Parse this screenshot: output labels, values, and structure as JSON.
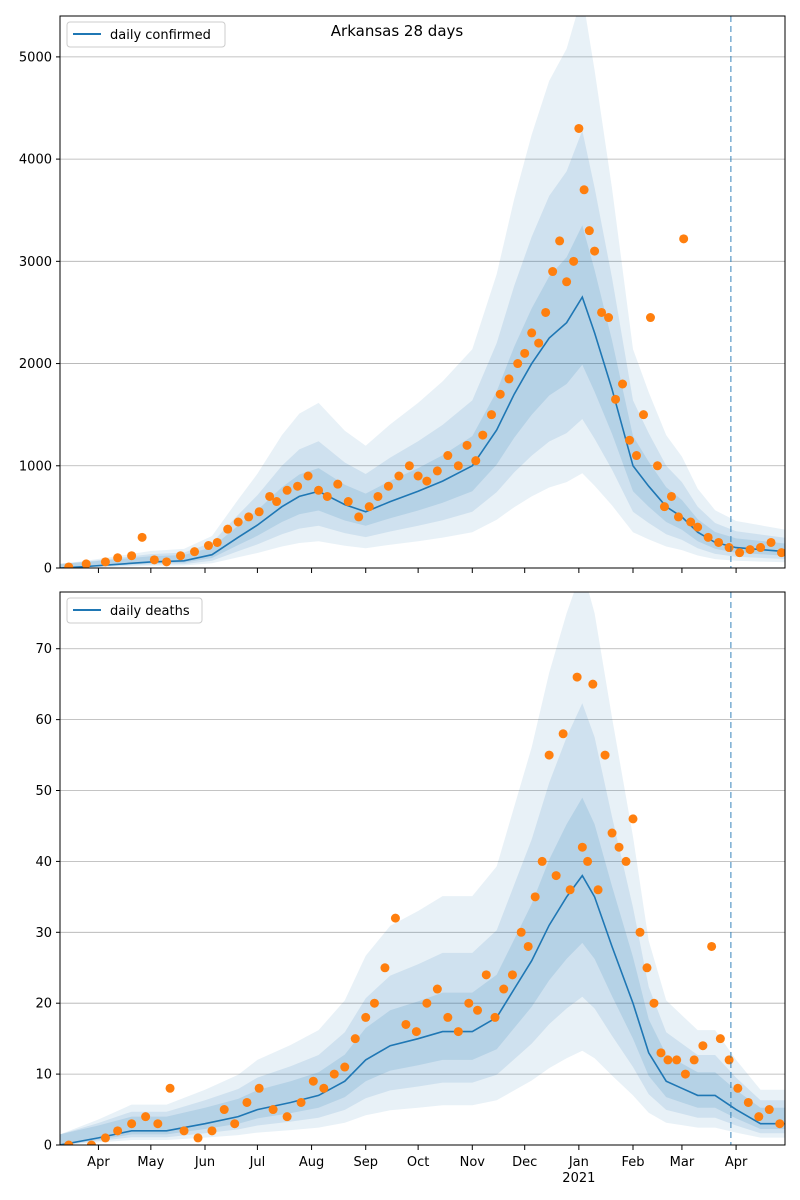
{
  "chart_data": [
    {
      "type": "line",
      "title": "Arkansas 28 days",
      "legend": "top-left",
      "grid": "y",
      "ylim": [
        0,
        5400
      ],
      "yticks": [
        0,
        1000,
        2000,
        3000,
        4000,
        5000
      ],
      "xlim": [
        "2020-03-10",
        "2021-04-29"
      ],
      "vline_date": "2021-03-29",
      "series": [
        {
          "name": "daily confirmed",
          "style": "line",
          "color": "#1f77b4",
          "x": [
            "2020-03-10",
            "2020-03-25",
            "2020-04-15",
            "2020-05-01",
            "2020-05-20",
            "2020-06-05",
            "2020-06-20",
            "2020-07-01",
            "2020-07-15",
            "2020-07-25",
            "2020-08-05",
            "2020-08-20",
            "2020-09-01",
            "2020-09-15",
            "2020-10-01",
            "2020-10-15",
            "2020-11-01",
            "2020-11-15",
            "2020-11-25",
            "2020-12-05",
            "2020-12-15",
            "2020-12-25",
            "2021-01-03",
            "2021-01-10",
            "2021-01-20",
            "2021-02-01",
            "2021-02-10",
            "2021-02-20",
            "2021-03-01",
            "2021-03-10",
            "2021-03-20",
            "2021-04-01",
            "2021-04-15",
            "2021-04-29"
          ],
          "y": [
            0,
            15,
            40,
            60,
            70,
            130,
            300,
            420,
            600,
            700,
            750,
            620,
            550,
            650,
            750,
            850,
            1000,
            1350,
            1700,
            2000,
            2250,
            2400,
            2650,
            2300,
            1750,
            1000,
            800,
            600,
            500,
            350,
            250,
            200,
            180,
            160
          ]
        },
        {
          "name": "observed",
          "style": "points",
          "color": "#ff7f0e",
          "x": [
            "2020-03-15",
            "2020-03-25",
            "2020-04-05",
            "2020-04-12",
            "2020-04-20",
            "2020-04-26",
            "2020-05-03",
            "2020-05-10",
            "2020-05-18",
            "2020-05-26",
            "2020-06-03",
            "2020-06-08",
            "2020-06-14",
            "2020-06-20",
            "2020-06-26",
            "2020-07-02",
            "2020-07-08",
            "2020-07-12",
            "2020-07-18",
            "2020-07-24",
            "2020-07-30",
            "2020-08-05",
            "2020-08-10",
            "2020-08-16",
            "2020-08-22",
            "2020-08-28",
            "2020-09-03",
            "2020-09-08",
            "2020-09-14",
            "2020-09-20",
            "2020-09-26",
            "2020-10-01",
            "2020-10-06",
            "2020-10-12",
            "2020-10-18",
            "2020-10-24",
            "2020-10-29",
            "2020-11-03",
            "2020-11-07",
            "2020-11-12",
            "2020-11-17",
            "2020-11-22",
            "2020-11-27",
            "2020-12-01",
            "2020-12-05",
            "2020-12-09",
            "2020-12-13",
            "2020-12-17",
            "2020-12-21",
            "2020-12-25",
            "2020-12-29",
            "2021-01-01",
            "2021-01-04",
            "2021-01-07",
            "2021-01-10",
            "2021-01-14",
            "2021-01-18",
            "2021-01-22",
            "2021-01-26",
            "2021-01-30",
            "2021-02-03",
            "2021-02-07",
            "2021-02-11",
            "2021-02-15",
            "2021-02-19",
            "2021-02-23",
            "2021-02-27",
            "2021-03-02",
            "2021-03-06",
            "2021-03-10",
            "2021-03-16",
            "2021-03-22",
            "2021-03-28",
            "2021-04-03",
            "2021-04-09",
            "2021-04-15",
            "2021-04-21",
            "2021-04-27"
          ],
          "y": [
            10,
            40,
            60,
            100,
            120,
            300,
            80,
            60,
            120,
            160,
            220,
            250,
            380,
            450,
            500,
            550,
            700,
            650,
            760,
            800,
            900,
            760,
            700,
            820,
            650,
            500,
            600,
            700,
            800,
            900,
            1000,
            900,
            850,
            950,
            1100,
            1000,
            1200,
            1050,
            1300,
            1500,
            1700,
            1850,
            2000,
            2100,
            2300,
            2200,
            2500,
            2900,
            3200,
            2800,
            3000,
            4300,
            3700,
            3300,
            3100,
            2500,
            2450,
            1650,
            1800,
            1250,
            1100,
            1500,
            2450,
            1000,
            600,
            700,
            500,
            3220,
            450,
            400,
            300,
            250,
            200,
            150,
            180,
            200,
            250,
            150
          ]
        }
      ]
    },
    {
      "type": "line",
      "title": "",
      "legend": "top-left",
      "grid": "y",
      "ylim": [
        0,
        78
      ],
      "yticks": [
        0,
        10,
        20,
        30,
        40,
        50,
        60,
        70
      ],
      "xlim": [
        "2020-03-10",
        "2021-04-29"
      ],
      "xticks": [
        {
          "date": "2020-04-01",
          "label": "Apr"
        },
        {
          "date": "2020-05-01",
          "label": "May"
        },
        {
          "date": "2020-06-01",
          "label": "Jun"
        },
        {
          "date": "2020-07-01",
          "label": "Jul"
        },
        {
          "date": "2020-08-01",
          "label": "Aug"
        },
        {
          "date": "2020-09-01",
          "label": "Sep"
        },
        {
          "date": "2020-10-01",
          "label": "Oct"
        },
        {
          "date": "2020-11-01",
          "label": "Nov"
        },
        {
          "date": "2020-12-01",
          "label": "Dec"
        },
        {
          "date": "2021-01-01",
          "label": "Jan"
        },
        {
          "date": "2021-02-01",
          "label": "Feb"
        },
        {
          "date": "2021-03-01",
          "label": "Mar"
        },
        {
          "date": "2021-04-01",
          "label": "Apr"
        }
      ],
      "year_label": {
        "date": "2021-01-01",
        "label": "2021"
      },
      "vline_date": "2021-03-29",
      "series": [
        {
          "name": "daily deaths",
          "style": "line",
          "color": "#1f77b4",
          "x": [
            "2020-03-10",
            "2020-04-01",
            "2020-04-20",
            "2020-05-10",
            "2020-06-01",
            "2020-06-20",
            "2020-07-01",
            "2020-07-20",
            "2020-08-05",
            "2020-08-20",
            "2020-09-01",
            "2020-09-15",
            "2020-10-01",
            "2020-10-15",
            "2020-11-01",
            "2020-11-15",
            "2020-11-25",
            "2020-12-05",
            "2020-12-15",
            "2020-12-25",
            "2021-01-03",
            "2021-01-10",
            "2021-01-20",
            "2021-02-01",
            "2021-02-10",
            "2021-02-20",
            "2021-03-01",
            "2021-03-10",
            "2021-03-20",
            "2021-04-01",
            "2021-04-15",
            "2021-04-29"
          ],
          "y": [
            0,
            1,
            2,
            2,
            3,
            4,
            5,
            6,
            7,
            9,
            12,
            14,
            15,
            16,
            16,
            18,
            22,
            26,
            31,
            35,
            38,
            35,
            28,
            20,
            13,
            9,
            8,
            7,
            7,
            5,
            3,
            3
          ]
        },
        {
          "name": "observed",
          "style": "points",
          "color": "#ff7f0e",
          "x": [
            "2020-03-15",
            "2020-03-28",
            "2020-04-05",
            "2020-04-12",
            "2020-04-20",
            "2020-04-28",
            "2020-05-05",
            "2020-05-12",
            "2020-05-20",
            "2020-05-28",
            "2020-06-05",
            "2020-06-12",
            "2020-06-18",
            "2020-06-25",
            "2020-07-02",
            "2020-07-10",
            "2020-07-18",
            "2020-07-26",
            "2020-08-02",
            "2020-08-08",
            "2020-08-14",
            "2020-08-20",
            "2020-08-26",
            "2020-09-01",
            "2020-09-06",
            "2020-09-12",
            "2020-09-18",
            "2020-09-24",
            "2020-09-30",
            "2020-10-06",
            "2020-10-12",
            "2020-10-18",
            "2020-10-24",
            "2020-10-30",
            "2020-11-04",
            "2020-11-09",
            "2020-11-14",
            "2020-11-19",
            "2020-11-24",
            "2020-11-29",
            "2020-12-03",
            "2020-12-07",
            "2020-12-11",
            "2020-12-15",
            "2020-12-19",
            "2020-12-23",
            "2020-12-27",
            "2020-12-31",
            "2021-01-03",
            "2021-01-06",
            "2021-01-09",
            "2021-01-12",
            "2021-01-16",
            "2021-01-20",
            "2021-01-24",
            "2021-01-28",
            "2021-02-01",
            "2021-02-05",
            "2021-02-09",
            "2021-02-13",
            "2021-02-17",
            "2021-02-21",
            "2021-02-26",
            "2021-03-03",
            "2021-03-08",
            "2021-03-13",
            "2021-03-18",
            "2021-03-23",
            "2021-03-28",
            "2021-04-02",
            "2021-04-08",
            "2021-04-14",
            "2021-04-20",
            "2021-04-26"
          ],
          "y": [
            0,
            0,
            1,
            2,
            3,
            4,
            3,
            8,
            2,
            1,
            2,
            5,
            3,
            6,
            8,
            5,
            4,
            6,
            9,
            8,
            10,
            11,
            15,
            18,
            20,
            25,
            32,
            17,
            16,
            20,
            22,
            18,
            16,
            20,
            19,
            24,
            18,
            22,
            24,
            30,
            28,
            35,
            40,
            55,
            38,
            58,
            36,
            66,
            42,
            40,
            65,
            36,
            55,
            44,
            42,
            40,
            46,
            30,
            25,
            20,
            13,
            12,
            12,
            10,
            12,
            14,
            28,
            15,
            12,
            8,
            6,
            4,
            5,
            3
          ]
        }
      ]
    }
  ]
}
